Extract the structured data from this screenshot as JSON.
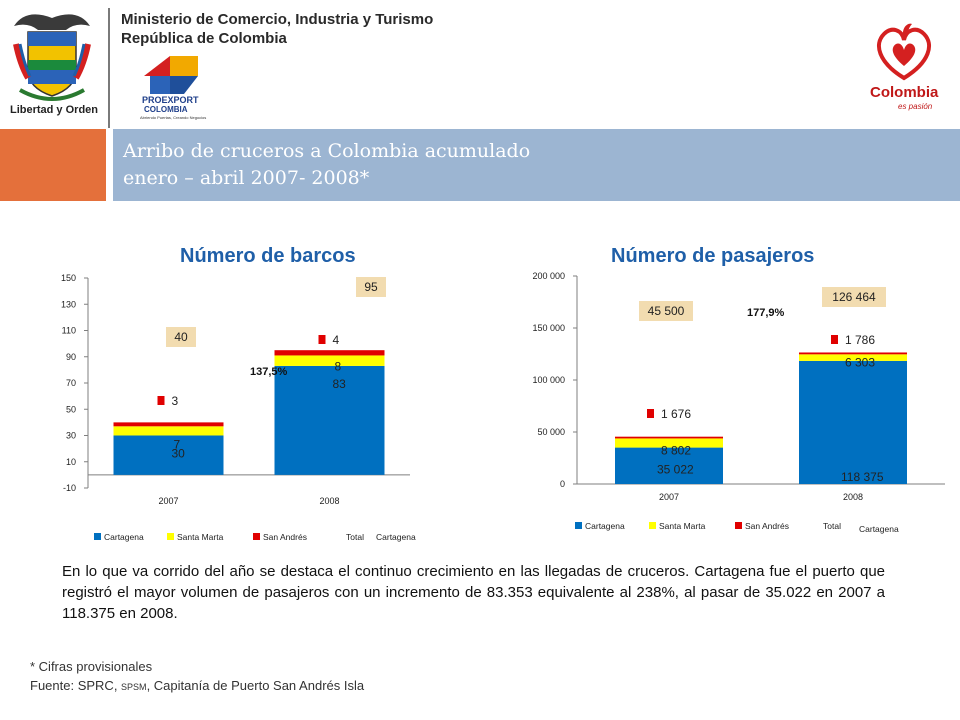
{
  "header": {
    "ministry_line1": "Ministerio de Comercio, Industria y Turismo",
    "ministry_line2": "República de Colombia",
    "motto": "Libertad y Orden",
    "proexport_name": "PROEXPORT",
    "proexport_country": "COLOMBIA",
    "proexport_tagline": "Abriendo Puertas, Creando Negocios",
    "colombia_brand": "Colombia",
    "colombia_tagline": "es pasión"
  },
  "banner": {
    "title_line1": "Arribo de cruceros a Colombia acumulado",
    "title_line2": "enero – abril 2007- 2008*"
  },
  "colors": {
    "cartagena": "#0070c0",
    "santa_marta": "#ffff00",
    "san_andres": "#e00000",
    "total_box": "#f2dcb0",
    "banner_blue": "#9cb5d2",
    "banner_orange": "#e4703b",
    "title_blue": "#1f5fa8"
  },
  "chart_data": [
    {
      "type": "bar",
      "stacked": true,
      "title": "Número de barcos",
      "categories": [
        "2007",
        "2008"
      ],
      "series": [
        {
          "name": "Cartagena",
          "values": [
            30,
            83
          ]
        },
        {
          "name": "Santa Marta",
          "values": [
            7,
            8
          ]
        },
        {
          "name": "San Andrés",
          "values": [
            3,
            4
          ]
        }
      ],
      "totals": [
        40,
        95
      ],
      "total_labels": [
        "40",
        "95"
      ],
      "segment_labels": {
        "Cartagena": [
          "30",
          "83"
        ],
        "Santa Marta": [
          "7",
          "8"
        ],
        "San Andrés": [
          "3",
          "4"
        ]
      },
      "growth_label": "137,5%",
      "ylim": [
        -10,
        150
      ],
      "yticks": [
        -10,
        10,
        30,
        50,
        70,
        90,
        110,
        130,
        150
      ],
      "ytick_labels": [
        "-10",
        "10",
        "30",
        "50",
        "70",
        "90",
        "110",
        "130",
        "150"
      ],
      "legend": [
        "Cartagena",
        "Santa Marta",
        "San Andrés",
        "Total"
      ],
      "legend_extra": "Cartagena",
      "legend_position": "bottom"
    },
    {
      "type": "bar",
      "stacked": true,
      "title": "Número de pasajeros",
      "categories": [
        "2007",
        "2008"
      ],
      "series": [
        {
          "name": "Cartagena",
          "values": [
            35022,
            118375
          ]
        },
        {
          "name": "Santa Marta",
          "values": [
            8802,
            6303
          ]
        },
        {
          "name": "San Andrés",
          "values": [
            1676,
            1786
          ]
        }
      ],
      "totals": [
        45500,
        126464
      ],
      "total_labels": [
        "45 500",
        "126 464"
      ],
      "segment_labels": {
        "Cartagena": [
          "35 022",
          "118 375"
        ],
        "Santa Marta": [
          "8 802",
          "6 303"
        ],
        "San Andrés": [
          "1 676",
          "1 786"
        ]
      },
      "growth_label": "177,9%",
      "ylim": [
        0,
        200000
      ],
      "yticks": [
        0,
        50000,
        100000,
        150000,
        200000
      ],
      "ytick_labels": [
        "0",
        "50 000",
        "100 000",
        "150 000",
        "200 000"
      ],
      "legend": [
        "Cartagena",
        "Santa Marta",
        "San Andrés",
        "Total"
      ],
      "legend_extra": "Cartagena",
      "legend_position": "bottom"
    }
  ],
  "body_text": "En lo que va corrido del año se destaca el continuo crecimiento en las llegadas de cruceros. Cartagena fue el puerto que registró el mayor volumen de pasajeros con un incremento de 83.353 equivalente al 238%, al pasar de 35.022 en 2007 a 118.375 en 2008.",
  "footnote": {
    "line1": "* Cifras provisionales",
    "line2_prefix": "Fuente: SPRC, ",
    "line2_small": "SPSM",
    "line2_suffix": ", Capitanía de Puerto San Andrés Isla"
  }
}
